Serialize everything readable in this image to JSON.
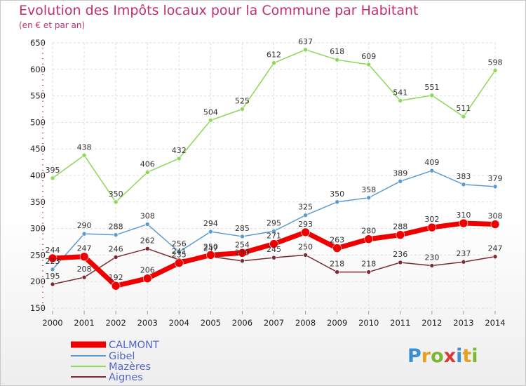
{
  "header": {
    "title": "Evolution des Impôts locaux pour la Commune par Habitant",
    "subtitle": "(en € et par an)"
  },
  "logo": {
    "letters": [
      "P",
      "r",
      "o",
      "x",
      "i",
      "t",
      "i"
    ],
    "colors": [
      "#3a8fd0",
      "#e8a020",
      "#7ab830",
      "#d83a3a",
      "#3a8fd0",
      "#e8a020",
      "#7ab830"
    ]
  },
  "chart_data": {
    "type": "line",
    "x": [
      2000,
      2001,
      2002,
      2003,
      2004,
      2005,
      2006,
      2007,
      2008,
      2009,
      2010,
      2011,
      2012,
      2013,
      2014
    ],
    "ylim": [
      150,
      650
    ],
    "yticks": [
      150,
      200,
      250,
      300,
      350,
      400,
      450,
      500,
      550,
      600,
      650
    ],
    "grid": true,
    "legend_position": "bottom-left",
    "series": [
      {
        "name": "CALMONT",
        "color": "#ee0000",
        "stroke": 7,
        "marker": 6,
        "values": [
          244,
          247,
          192,
          206,
          235,
          250,
          254,
          271,
          293,
          263,
          280,
          288,
          302,
          310,
          308
        ]
      },
      {
        "name": "Gibel",
        "color": "#5b9bd0",
        "stroke": 1.5,
        "marker": 3,
        "values": [
          223,
          290,
          288,
          308,
          256,
          294,
          285,
          295,
          325,
          350,
          358,
          389,
          409,
          383,
          379
        ]
      },
      {
        "name": "Mazères",
        "color": "#8cd858",
        "stroke": 1.5,
        "marker": 3,
        "values": [
          395,
          438,
          350,
          406,
          432,
          504,
          525,
          612,
          637,
          618,
          609,
          541,
          551,
          511,
          598
        ]
      },
      {
        "name": "Aignes",
        "color": "#7a2a30",
        "stroke": 1.5,
        "marker": 3,
        "values": [
          195,
          208,
          246,
          262,
          241,
          247,
          239,
          245,
          250,
          218,
          218,
          236,
          230,
          237,
          247
        ]
      }
    ]
  }
}
